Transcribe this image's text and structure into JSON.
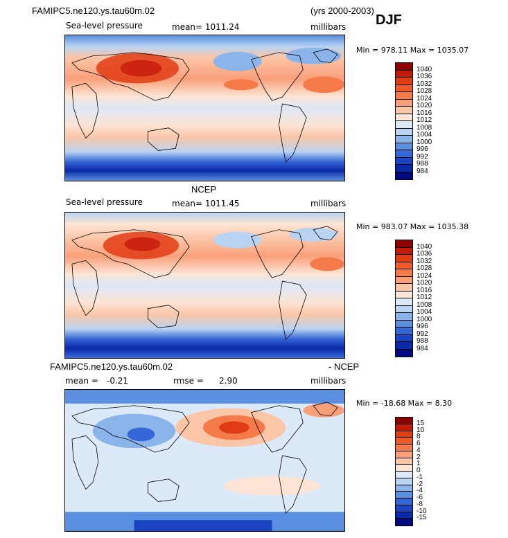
{
  "header": {
    "case_name": "FAMIPC5.ne120.ys.tau60m.02",
    "years": "(yrs 2000-2003)",
    "season": "DJF"
  },
  "panels": [
    {
      "id": "model",
      "variable": "Sea-level pressure",
      "stat_text": "mean= 1011.24",
      "units": "millibars",
      "minmax": "Min = 978.11 Max = 1035.07"
    },
    {
      "id": "obs",
      "title": "NCEP",
      "variable": "Sea-level pressure",
      "stat_text": "mean= 1011.45",
      "units": "millibars",
      "minmax": "Min = 983.07 Max = 1035.38"
    },
    {
      "id": "diff",
      "title_left": "FAMIPC5.ne120.ys.tau60m.02",
      "title_right": "- NCEP",
      "mean_label": "mean =",
      "mean_value": "-0.21",
      "rmse_label": "rmse =",
      "rmse_value": "2.90",
      "units": "millibars",
      "minmax": "Min = -18.68 Max =   8.30"
    }
  ],
  "colorbar_abs": {
    "labels": [
      "1040",
      "1036",
      "1032",
      "1028",
      "1024",
      "1020",
      "1016",
      "1012",
      "1008",
      "1004",
      "1000",
      "996",
      "992",
      "988",
      "984"
    ],
    "colors": [
      "#8b0000",
      "#c41a0a",
      "#e03c14",
      "#ef5a28",
      "#f47a4a",
      "#f9a07a",
      "#fbc6a8",
      "#fde4d4",
      "#dce9f8",
      "#b9d3f2",
      "#8ab4ea",
      "#5a8fdf",
      "#3366d6",
      "#1a44c2",
      "#0a2aa8",
      "#000a80"
    ]
  },
  "colorbar_diff": {
    "labels": [
      "15",
      "10",
      "8",
      "6",
      "4",
      "2",
      "1",
      "0",
      "-1",
      "-2",
      "-4",
      "-6",
      "-8",
      "-10",
      "-15"
    ],
    "colors": [
      "#8b0000",
      "#c41a0a",
      "#e03c14",
      "#ef5a28",
      "#f47a4a",
      "#f9a07a",
      "#fbc6a8",
      "#fde4d4",
      "#dce9f8",
      "#b9d3f2",
      "#8ab4ea",
      "#5a8fdf",
      "#3366d6",
      "#1a44c2",
      "#0a2aa8",
      "#000a80"
    ]
  },
  "chart_data": [
    {
      "type": "heatmap",
      "title": "FAMIPC5.ne120.ys.tau60m.02 (yrs 2000-2003) DJF",
      "subtitle": "Sea-level pressure",
      "units": "millibars",
      "mean": 1011.24,
      "min": 978.11,
      "max": 1035.07,
      "contour_levels": [
        984,
        988,
        992,
        996,
        1000,
        1004,
        1008,
        1012,
        1016,
        1020,
        1024,
        1028,
        1032,
        1036,
        1040
      ]
    },
    {
      "type": "heatmap",
      "title": "NCEP",
      "subtitle": "Sea-level pressure",
      "units": "millibars",
      "mean": 1011.45,
      "min": 983.07,
      "max": 1035.38,
      "contour_levels": [
        984,
        988,
        992,
        996,
        1000,
        1004,
        1008,
        1012,
        1016,
        1020,
        1024,
        1028,
        1032,
        1036,
        1040
      ]
    },
    {
      "type": "heatmap",
      "title": "FAMIPC5.ne120.ys.tau60m.02 - NCEP",
      "units": "millibars",
      "mean": -0.21,
      "rmse": 2.9,
      "min": -18.68,
      "max": 8.3,
      "contour_levels": [
        -15,
        -10,
        -8,
        -6,
        -4,
        -2,
        -1,
        0,
        1,
        2,
        4,
        6,
        8,
        10,
        15
      ]
    }
  ]
}
